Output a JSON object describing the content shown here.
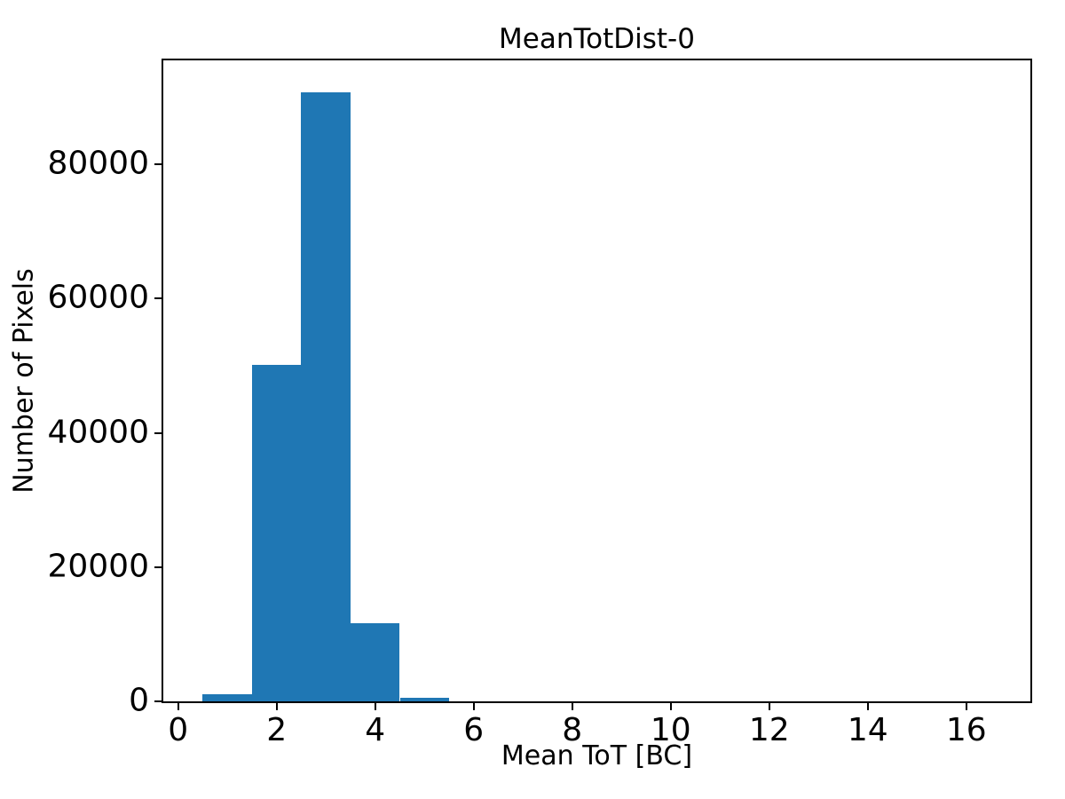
{
  "colors": {
    "bar": "#1f77b4",
    "axis": "#000000",
    "background": "#ffffff"
  },
  "chart_data": {
    "type": "bar",
    "subtype": "histogram",
    "title": "MeanTotDist-0",
    "xlabel": "Mean ToT [BC]",
    "ylabel": "Number of Pixels",
    "bin_edges": [
      0.5,
      1.5,
      2.5,
      3.5,
      4.5,
      5.5,
      6.5,
      7.5,
      8.5,
      9.5,
      10.5,
      11.5,
      12.5,
      13.5,
      14.5,
      15.5,
      16.5
    ],
    "counts": [
      1000,
      50200,
      90700,
      11700,
      500,
      0,
      0,
      0,
      0,
      0,
      0,
      0,
      0,
      0,
      0,
      0
    ],
    "xlim": [
      -0.3,
      17.3
    ],
    "ylim": [
      0,
      95500
    ],
    "xticks": [
      0,
      2,
      4,
      6,
      8,
      10,
      12,
      14,
      16
    ],
    "xtick_labels": [
      "0",
      "2",
      "4",
      "6",
      "8",
      "10",
      "12",
      "14",
      "16"
    ],
    "yticks": [
      0,
      20000,
      40000,
      60000,
      80000
    ],
    "ytick_labels": [
      "0",
      "20000",
      "40000",
      "60000",
      "80000"
    ],
    "grid": false,
    "legend_position": "none"
  }
}
